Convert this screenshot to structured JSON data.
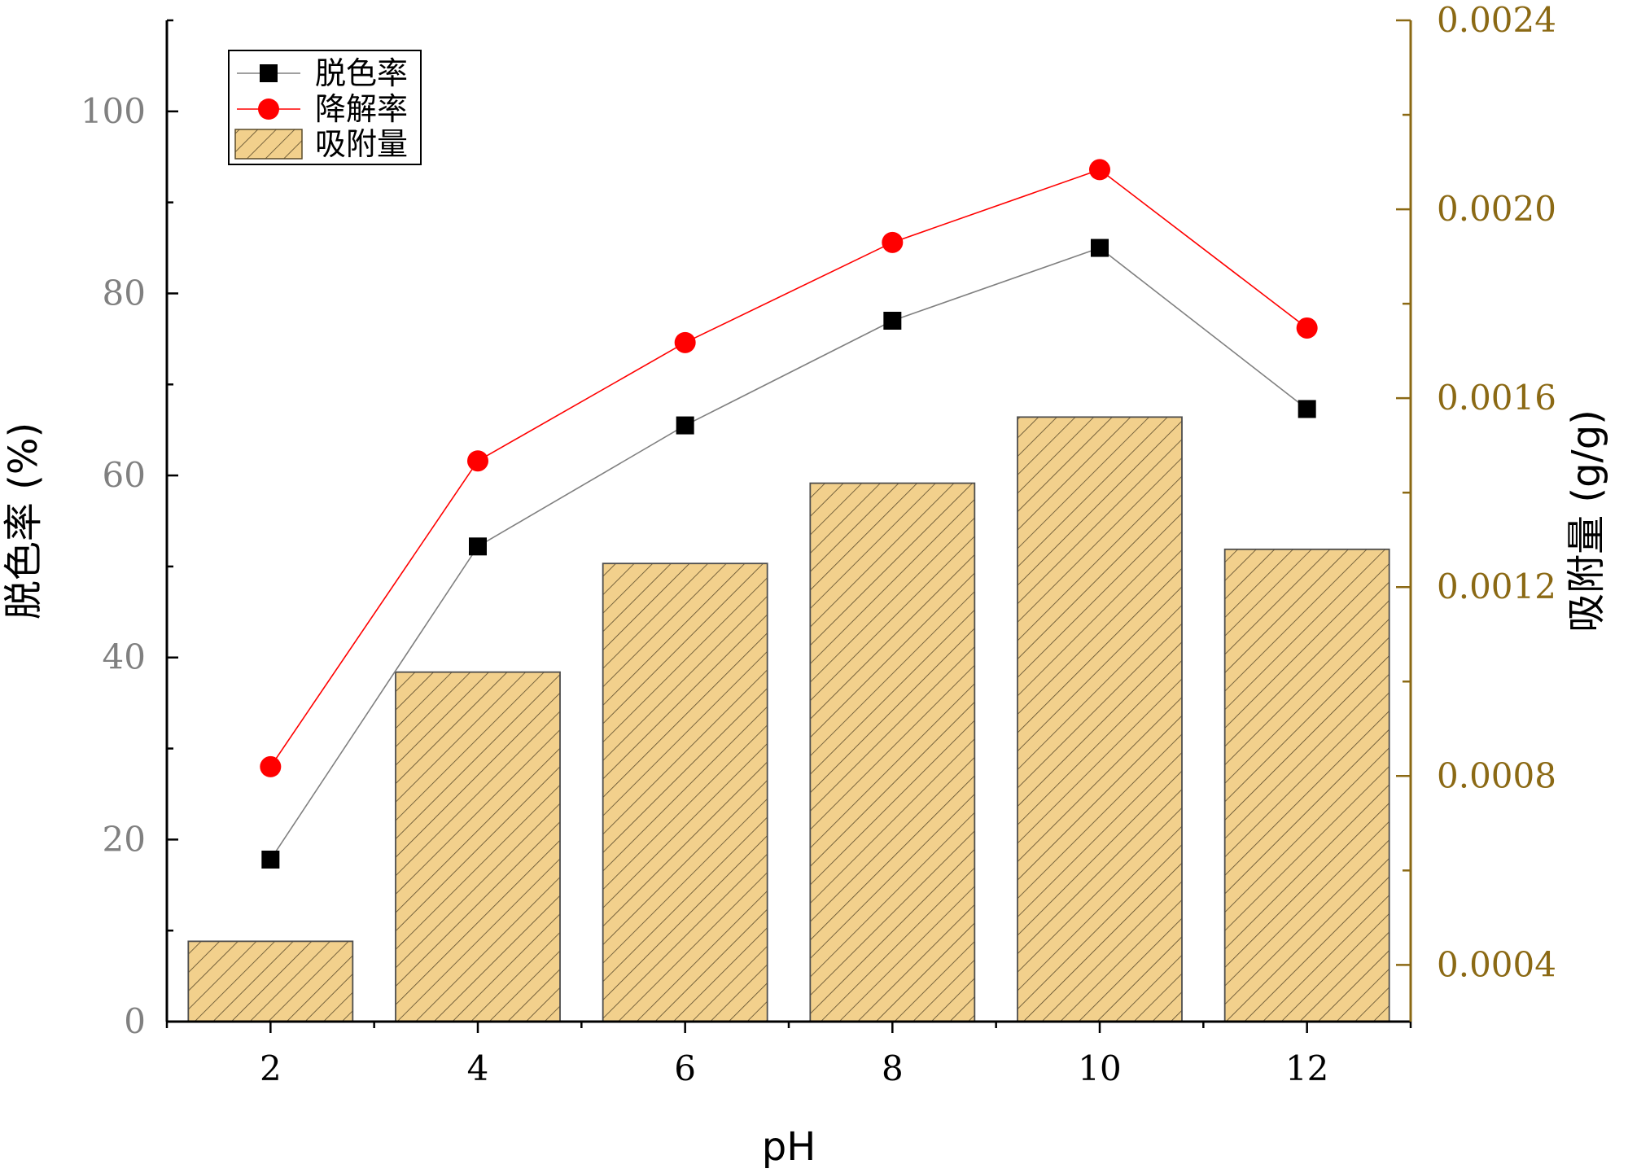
{
  "chart_data": {
    "type": "bar+line",
    "x": [
      2,
      4,
      6,
      8,
      10,
      12
    ],
    "xlabel": "pH",
    "xlim": [
      1,
      13
    ],
    "x_ticks": [
      "2",
      "4",
      "6",
      "8",
      "10",
      "12"
    ],
    "y_left": {
      "label": "脱色率 (%)",
      "lim": [
        0,
        110
      ],
      "ticks": [
        "0",
        "20",
        "40",
        "60",
        "80",
        "100"
      ],
      "color": "#808080"
    },
    "y_right": {
      "label": "吸附量 (g/g)",
      "lim": [
        0.00028,
        0.0024
      ],
      "ticks": [
        "0.0004",
        "0.0008",
        "0.0012",
        "0.0016",
        "0.0020",
        "0.0024"
      ],
      "color": "#8B6914"
    },
    "series": [
      {
        "name": "脱色率",
        "kind": "line",
        "axis": "left",
        "marker": "square",
        "color": "#000000",
        "line_color": "#808080",
        "values": [
          17.8,
          52.2,
          65.5,
          77.0,
          85.0,
          67.3
        ]
      },
      {
        "name": "降解率",
        "kind": "line",
        "axis": "left",
        "marker": "circle",
        "color": "#FF0000",
        "line_color": "#FF0000",
        "values": [
          28.0,
          61.6,
          74.6,
          85.6,
          93.6,
          76.2
        ]
      },
      {
        "name": "吸附量",
        "kind": "bar",
        "axis": "right",
        "color": "#F2D08C",
        "hatch_color": "#5a4a2a",
        "values": [
          0.00045,
          0.00102,
          0.00125,
          0.00142,
          0.00156,
          0.00128
        ]
      }
    ],
    "legend_position": "top-left",
    "grid": false
  }
}
